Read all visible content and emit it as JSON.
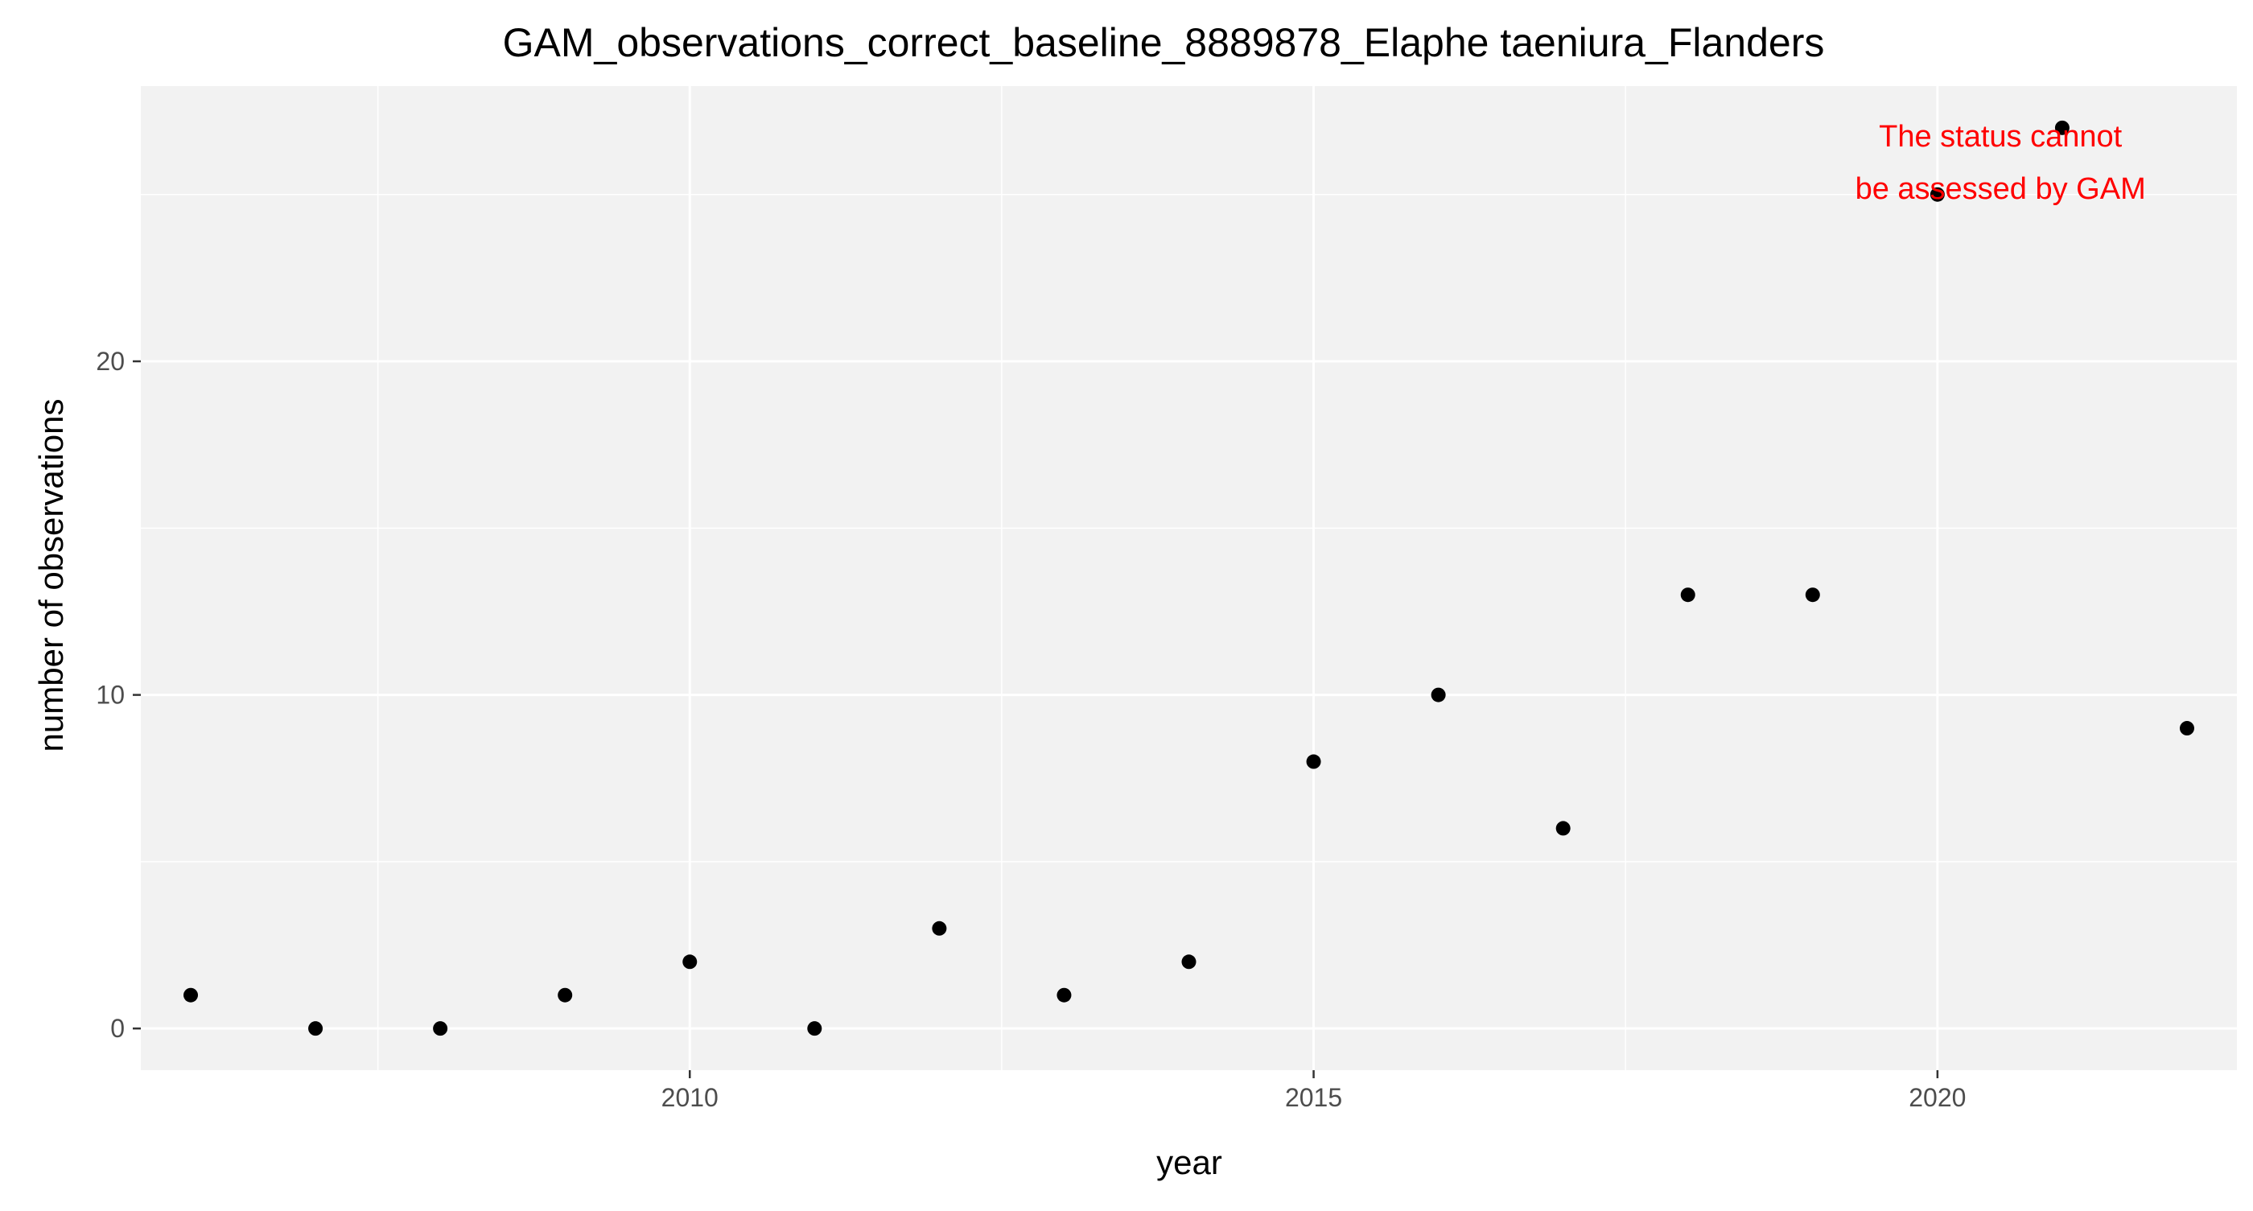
{
  "chart_data": {
    "type": "scatter",
    "title": "GAM_observations_correct_baseline_8889878_Elaphe taeniura_Flanders",
    "xlabel": "year",
    "ylabel": "number of observations",
    "xlim": [
      2005.6,
      2022.4
    ],
    "ylim": [
      -1.25,
      28.25
    ],
    "x_ticks": [
      2010,
      2015,
      2020
    ],
    "x_minor_ticks": [
      2007.5,
      2012.5,
      2017.5,
      2022.5
    ],
    "y_ticks": [
      0,
      10,
      20
    ],
    "y_minor_ticks": [
      5,
      15,
      25
    ],
    "grid": true,
    "legend": "none",
    "panel_background": "#f2f2f2",
    "grid_color": "#ffffff",
    "point_color": "#000000",
    "series": [
      {
        "points": [
          {
            "x": 2006,
            "y": 1
          },
          {
            "x": 2007,
            "y": 0
          },
          {
            "x": 2008,
            "y": 0
          },
          {
            "x": 2009,
            "y": 1
          },
          {
            "x": 2010,
            "y": 2
          },
          {
            "x": 2011,
            "y": 0
          },
          {
            "x": 2012,
            "y": 3
          },
          {
            "x": 2013,
            "y": 1
          },
          {
            "x": 2014,
            "y": 2
          },
          {
            "x": 2015,
            "y": 8
          },
          {
            "x": 2016,
            "y": 10
          },
          {
            "x": 2017,
            "y": 6
          },
          {
            "x": 2018,
            "y": 13
          },
          {
            "x": 2019,
            "y": 13
          },
          {
            "x": 2020,
            "y": 25
          },
          {
            "x": 2021,
            "y": 27
          },
          {
            "x": 2022,
            "y": 9
          }
        ]
      }
    ],
    "annotation": {
      "lines": [
        "The status cannot",
        "be assessed by GAM"
      ],
      "color": "#ff0000",
      "placement": "top-right"
    }
  }
}
